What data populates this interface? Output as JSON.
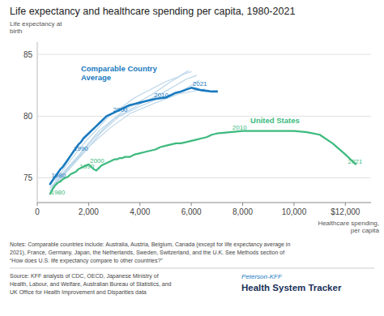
{
  "chart_data": {
    "type": "line",
    "title": "Life expectancy and healthcare spending per capita, 1980-2021",
    "y_label": "Life expectancy at\nbirth",
    "x_label": "Healthcare spending,\nper capita",
    "xlim": [
      0,
      13000
    ],
    "ylim": [
      73.0,
      86.0
    ],
    "yticks": [
      75,
      80,
      85
    ],
    "xticks": [
      0,
      {
        "value": 2000,
        "label": "2,000"
      },
      {
        "value": 4000,
        "label": "4,000"
      },
      {
        "value": 6000,
        "label": "6,000"
      },
      {
        "value": 8000,
        "label": "8,000"
      },
      {
        "value": 10000,
        "label": "10,000"
      },
      {
        "value": 12000,
        "label": "$12,000"
      }
    ],
    "grid": true,
    "series": [
      {
        "color": "#b8d4e8",
        "x": [
          500,
          700,
          1000,
          1400,
          2000,
          2800,
          3600,
          4500,
          5500,
          6000,
          6500
        ],
        "values": [
          74.0,
          74.5,
          75.2,
          76.2,
          77.5,
          79.0,
          80.2,
          81.0,
          81.8,
          82.0,
          82.2
        ]
      },
      {
        "color": "#b8d4e8",
        "x": [
          500,
          800,
          1200,
          1800,
          2500,
          3200,
          4000,
          4800,
          5500,
          6000,
          6300
        ],
        "values": [
          73.8,
          74.6,
          75.6,
          77.0,
          78.7,
          80.0,
          80.8,
          81.5,
          81.9,
          82.5,
          82.9
        ]
      },
      {
        "color": "#b8d4e8",
        "x": [
          500,
          900,
          1500,
          2200,
          3000,
          4000,
          4800,
          5400,
          5800,
          6200
        ],
        "values": [
          74.2,
          75.1,
          76.5,
          78.2,
          79.8,
          81.0,
          81.8,
          82.5,
          83.0,
          83.3
        ]
      },
      {
        "color": "#b8d4e8",
        "x": [
          600,
          1000,
          1600,
          2400,
          3400,
          4500,
          5200,
          5700,
          6000
        ],
        "values": [
          74.3,
          75.4,
          76.8,
          78.8,
          80.5,
          81.8,
          82.8,
          83.4,
          83.6
        ]
      },
      {
        "color": "#b8d4e8",
        "x": [
          700,
          1200,
          1900,
          2800,
          3800,
          5000,
          5500,
          5900
        ],
        "values": [
          74.8,
          76.2,
          78.0,
          80.0,
          81.5,
          82.8,
          83.2,
          83.7
        ]
      },
      {
        "name": "United States",
        "color": "#3dba7e",
        "label_anchor": {
          "x": 8300,
          "y": 79.3
        },
        "x": [
          500,
          600,
          700,
          800,
          900,
          1000,
          1100,
          1200,
          1300,
          1400,
          1500,
          1600,
          1700,
          1800,
          1900,
          2000,
          2100,
          2200,
          2300,
          2400,
          2500,
          2600,
          2700,
          2800,
          2900,
          3000,
          3100,
          3200,
          3300,
          3400,
          3600,
          3800,
          4000,
          4200,
          4400,
          4600,
          4800,
          5000,
          5200,
          5400,
          5600,
          5800,
          6000,
          6200,
          6400,
          6600,
          6800,
          7000,
          7500,
          8000,
          8500,
          9000,
          9500,
          10000,
          10500,
          11000,
          11500,
          12000,
          12400
        ],
        "values": [
          73.7,
          74.1,
          74.4,
          74.6,
          74.7,
          74.9,
          75.0,
          75.1,
          75.3,
          75.4,
          75.5,
          75.7,
          75.8,
          75.9,
          76.0,
          76.1,
          75.9,
          75.7,
          75.6,
          75.8,
          76.0,
          76.1,
          76.2,
          76.3,
          76.4,
          76.5,
          76.5,
          76.6,
          76.6,
          76.7,
          76.7,
          76.9,
          77.0,
          77.1,
          77.2,
          77.3,
          77.5,
          77.6,
          77.7,
          77.8,
          77.8,
          77.9,
          78.0,
          78.1,
          78.2,
          78.3,
          78.5,
          78.6,
          78.7,
          78.8,
          78.8,
          78.8,
          78.8,
          78.8,
          78.7,
          78.5,
          77.8,
          76.9,
          76.1
        ],
        "annotations": [
          {
            "text": "1980",
            "x": 520,
            "y": 73.5
          },
          {
            "text": "1990",
            "x": 1650,
            "y": 75.65
          },
          {
            "text": "2000",
            "x": 2050,
            "y": 76.1
          },
          {
            "text": "2010",
            "x": 7600,
            "y": 78.75
          },
          {
            "text": "2021",
            "x": 12100,
            "y": 76.0
          }
        ]
      },
      {
        "name": "Comparable Country\nAverage",
        "color": "#1a7abf",
        "label_anchor": {
          "x": 1700,
          "y": 82.8
        },
        "x": [
          500,
          600,
          700,
          800,
          900,
          1000,
          1100,
          1200,
          1300,
          1400,
          1500,
          1600,
          1700,
          1800,
          1900,
          2000,
          2100,
          2200,
          2300,
          2400,
          2500,
          2600,
          2700,
          2800,
          2900,
          3000,
          3200,
          3400,
          3600,
          3800,
          4000,
          4200,
          4400,
          4500,
          4600,
          4800,
          5000,
          5200,
          5400,
          5600,
          5800,
          6000,
          6100,
          6200,
          6400,
          6600,
          6800,
          7000
        ],
        "values": [
          74.5,
          74.8,
          75.1,
          75.4,
          75.7,
          75.9,
          76.2,
          76.5,
          76.8,
          77.1,
          77.4,
          77.7,
          77.9,
          78.2,
          78.4,
          78.6,
          78.8,
          79.0,
          79.2,
          79.4,
          79.6,
          79.8,
          80.0,
          80.1,
          80.2,
          80.3,
          80.5,
          80.7,
          80.9,
          81.0,
          81.1,
          81.2,
          81.3,
          81.35,
          81.4,
          81.45,
          81.5,
          81.7,
          81.9,
          82.0,
          82.15,
          82.3,
          82.25,
          82.2,
          82.1,
          82.05,
          82.0,
          82.0
        ],
        "annotations": [
          {
            "text": "1980",
            "x": 550,
            "y": 74.9
          },
          {
            "text": "1990",
            "x": 1420,
            "y": 77.1
          },
          {
            "text": "2000",
            "x": 2950,
            "y": 80.25
          },
          {
            "text": "2010",
            "x": 4550,
            "y": 81.4
          },
          {
            "text": "2021",
            "x": 6050,
            "y": 82.35
          }
        ]
      }
    ],
    "notes": [
      "Notes: Comparable countries include: Australia, Austria, Belgium, Canada (except for life expectancy average in",
      "2021), France, Germany, Japan, the Netherlands, Sweden, Switzerland, and the U.K. See Methods section of",
      "“How does U.S. life expectancy compare to other countries?”"
    ],
    "source": [
      "Source: KFF analysis of CDC, OECD, Japanese Ministry of",
      "Health, Labour, and Welfare, Australian Bureau of Statistics, and",
      "UK Office for Health Improvement and Disparities data"
    ],
    "logo": [
      "Peterson-KFF",
      "Health System Tracker"
    ]
  }
}
